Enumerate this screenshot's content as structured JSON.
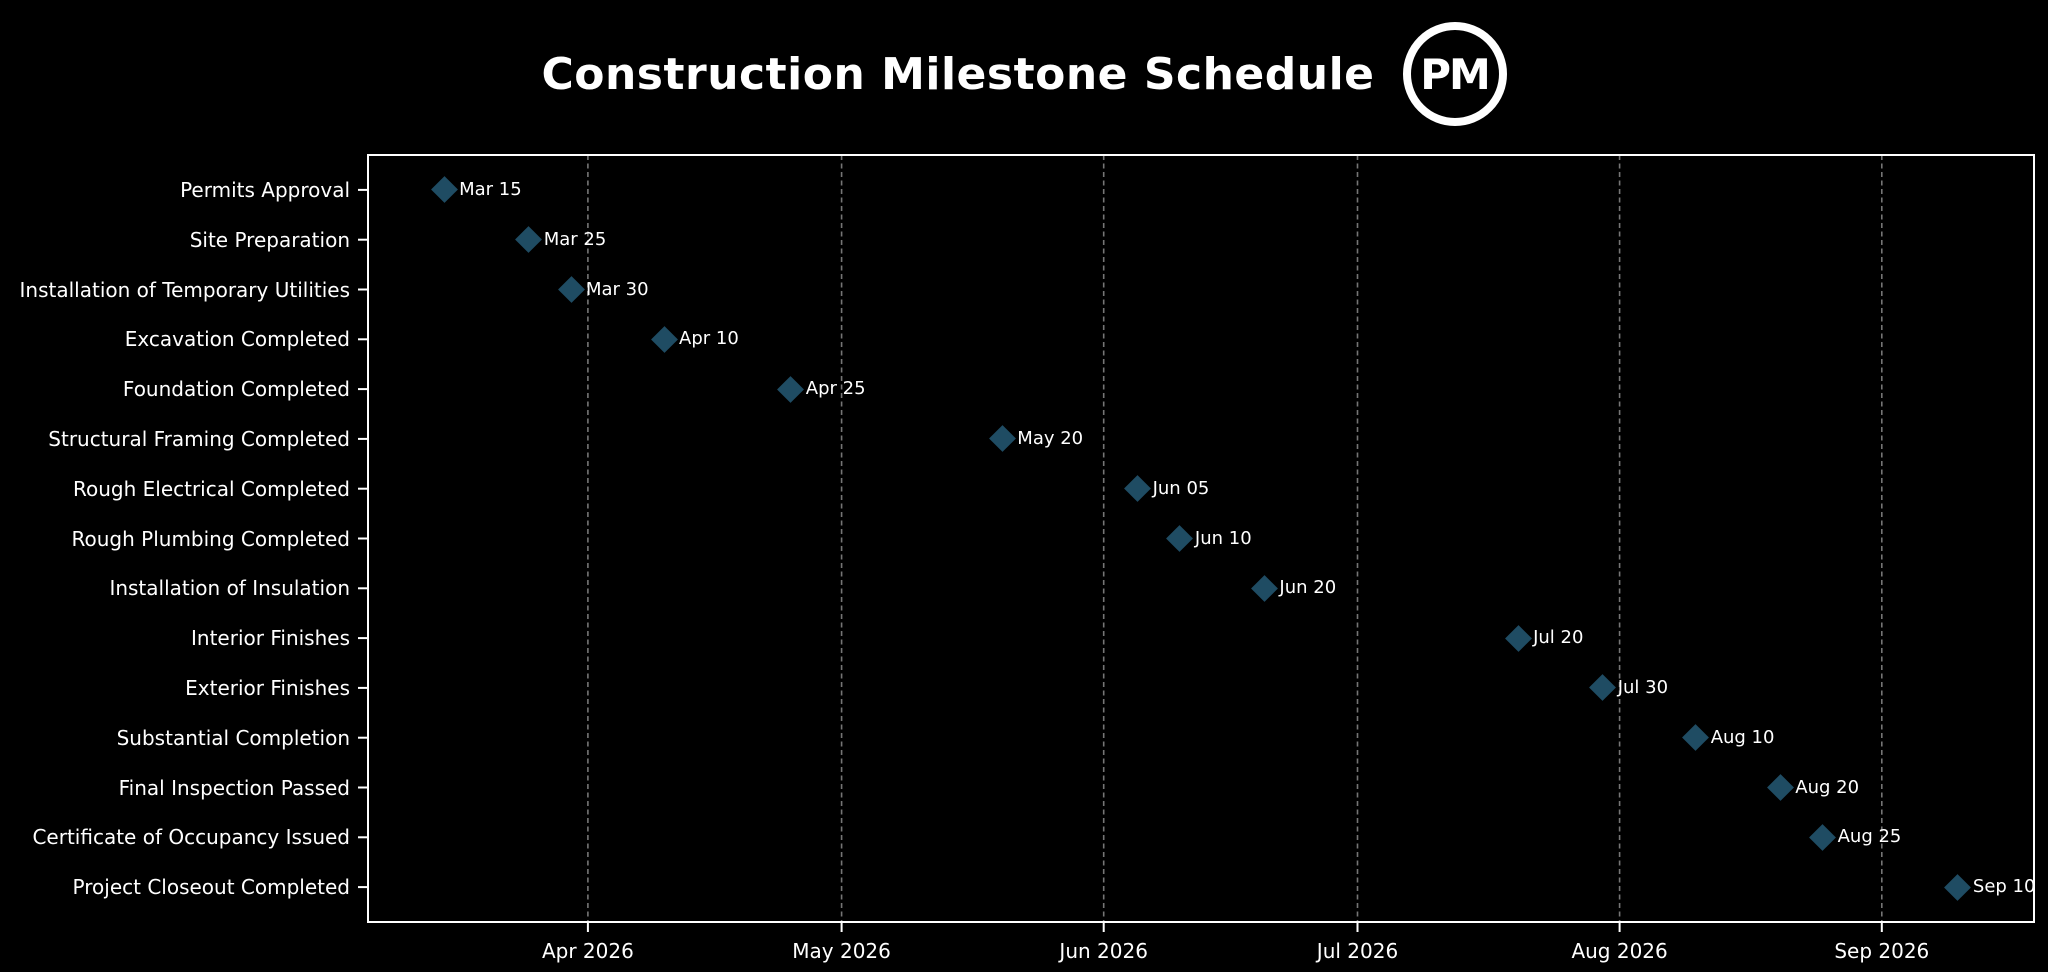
{
  "chart_data": {
    "type": "scatter",
    "title": "Construction Milestone Schedule",
    "logo_text": "PM",
    "x_axis": {
      "tick_labels": [
        "Apr 2026",
        "May 2026",
        "Jun 2026",
        "Jul 2026",
        "Aug 2026",
        "Sep 2026"
      ],
      "tick_dates": [
        "2026-04-01",
        "2026-05-01",
        "2026-06-01",
        "2026-07-01",
        "2026-08-01",
        "2026-09-01"
      ],
      "min_date": "2026-03-06",
      "max_date": "2026-09-19",
      "grid": "vertical-dashed"
    },
    "y_axis": {
      "categories_top_to_bottom": true
    },
    "milestones": [
      {
        "task": "Permits Approval",
        "date": "2026-03-15",
        "label": "Mar 15"
      },
      {
        "task": "Site Preparation",
        "date": "2026-03-25",
        "label": "Mar 25"
      },
      {
        "task": "Installation of Temporary Utilities",
        "date": "2026-03-30",
        "label": "Mar 30"
      },
      {
        "task": "Excavation Completed",
        "date": "2026-04-10",
        "label": "Apr 10"
      },
      {
        "task": "Foundation Completed",
        "date": "2026-04-25",
        "label": "Apr 25"
      },
      {
        "task": "Structural Framing Completed",
        "date": "2026-05-20",
        "label": "May 20"
      },
      {
        "task": "Rough Electrical Completed",
        "date": "2026-06-05",
        "label": "Jun 05"
      },
      {
        "task": "Rough Plumbing Completed",
        "date": "2026-06-10",
        "label": "Jun 10"
      },
      {
        "task": "Installation of Insulation",
        "date": "2026-06-20",
        "label": "Jun 20"
      },
      {
        "task": "Interior Finishes",
        "date": "2026-07-20",
        "label": "Jul 20"
      },
      {
        "task": "Exterior Finishes",
        "date": "2026-07-30",
        "label": "Jul 30"
      },
      {
        "task": "Substantial Completion",
        "date": "2026-08-10",
        "label": "Aug 10"
      },
      {
        "task": "Final Inspection Passed",
        "date": "2026-08-20",
        "label": "Aug 20"
      },
      {
        "task": "Certificate of Occupancy Issued",
        "date": "2026-08-25",
        "label": "Aug 25"
      },
      {
        "task": "Project Closeout Completed",
        "date": "2026-09-10",
        "label": "Sep 10"
      }
    ],
    "style": {
      "background_color": "#000000",
      "text_color": "#ffffff",
      "marker_shape": "diamond",
      "marker_color": "#1f4c63",
      "grid_color": "#757575",
      "axis_border_color": "#ffffff"
    },
    "legend": "none"
  }
}
